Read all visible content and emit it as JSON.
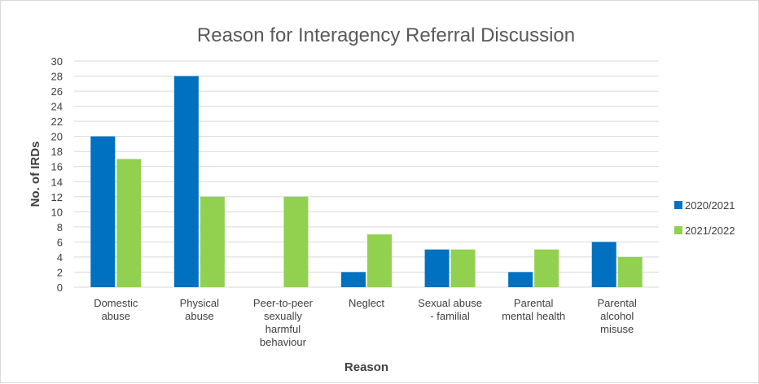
{
  "chart_data": {
    "type": "bar",
    "title": "Reason for Interagency Referral Discussion",
    "xlabel": "Reason",
    "ylabel": "No. of IRDs",
    "categories": [
      [
        "Domestic",
        "abuse"
      ],
      [
        "Physical",
        "abuse"
      ],
      [
        "Peer-to-peer",
        "sexually",
        "harmful",
        "behaviour"
      ],
      [
        "Neglect"
      ],
      [
        "Sexual abuse",
        "- familial"
      ],
      [
        "Parental",
        "mental health"
      ],
      [
        "Parental",
        "alcohol",
        "misuse"
      ]
    ],
    "series": [
      {
        "name": "2020/2021",
        "color": "#0070C0",
        "values": [
          20,
          28,
          0,
          2,
          5,
          2,
          6
        ]
      },
      {
        "name": "2021/2022",
        "color": "#92D050",
        "values": [
          17,
          12,
          12,
          7,
          5,
          5,
          4
        ]
      }
    ],
    "ylim": [
      0,
      30
    ],
    "yticks": [
      0,
      2,
      4,
      6,
      8,
      10,
      12,
      14,
      16,
      18,
      20,
      22,
      24,
      26,
      28,
      30
    ],
    "grid": true,
    "gridline_color": "#d9d9d9",
    "legend_position": "right"
  }
}
